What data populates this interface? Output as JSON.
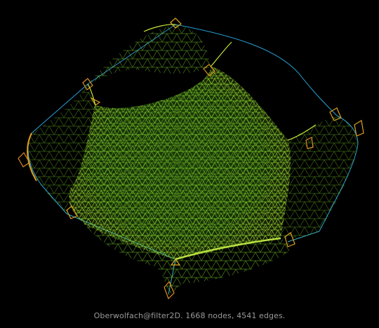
{
  "caption": "Oberwolfach@filter2D. 1668 nodes, 4541 edges.",
  "colors": {
    "background": "#000000",
    "mesh_core": "#7fd62a",
    "mesh_edge_low": "#2a9fd6",
    "mesh_edge_high": "#e0a020",
    "caption_text": "#9a9a9a"
  }
}
